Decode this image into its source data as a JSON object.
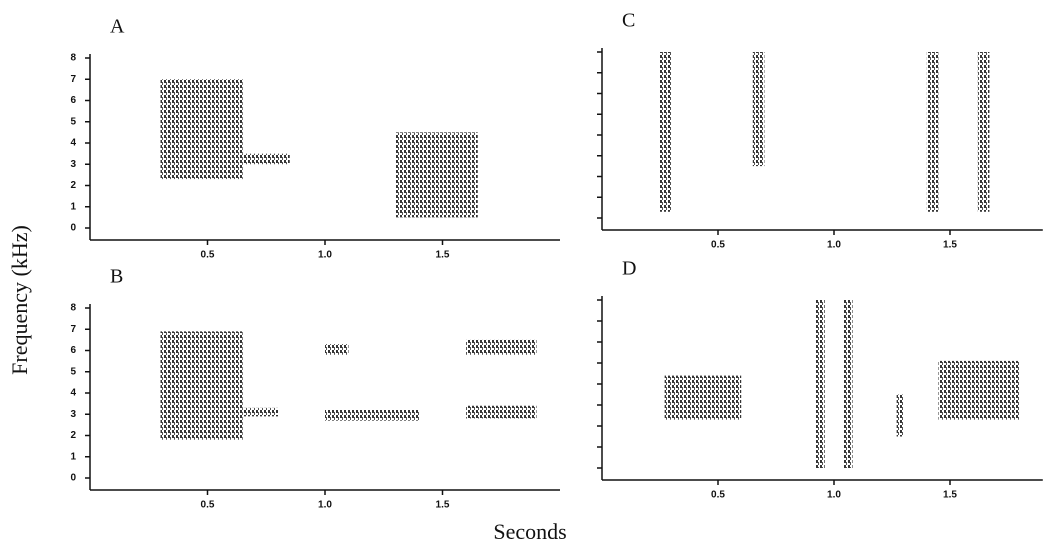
{
  "figure": {
    "ylabel": "Frequency (kHz)",
    "xlabel": "Seconds"
  },
  "chart_data": [
    {
      "type": "spectrogram",
      "label": "A",
      "xlim": [
        0,
        2
      ],
      "ylim": [
        0,
        8
      ],
      "xticks": [
        0.5,
        {
          "value": 1,
          "label": "1.0"
        },
        1.5
      ],
      "yticks": [
        0,
        1,
        2,
        3,
        4,
        5,
        6,
        7,
        8
      ],
      "calls": [
        {
          "t": [
            0.3,
            0.65
          ],
          "f": [
            2.3,
            7.0
          ]
        },
        {
          "t": [
            0.65,
            0.85
          ],
          "f": [
            3.0,
            3.5
          ]
        },
        {
          "t": [
            1.3,
            1.65
          ],
          "f": [
            0.5,
            4.5
          ]
        }
      ]
    },
    {
      "type": "spectrogram",
      "label": "B",
      "xlim": [
        0,
        2
      ],
      "ylim": [
        0,
        8
      ],
      "xticks": [
        0.5,
        {
          "value": 1,
          "label": "1.0"
        },
        1.5
      ],
      "yticks": [
        0,
        1,
        2,
        3,
        4,
        5,
        6,
        7,
        8
      ],
      "calls": [
        {
          "t": [
            0.3,
            0.65
          ],
          "f": [
            1.8,
            6.9
          ]
        },
        {
          "t": [
            0.65,
            0.8
          ],
          "f": [
            2.9,
            3.3
          ]
        },
        {
          "t": [
            1.0,
            1.1
          ],
          "f": [
            5.8,
            6.3
          ]
        },
        {
          "t": [
            1.0,
            1.4
          ],
          "f": [
            2.7,
            3.2
          ]
        },
        {
          "t": [
            1.6,
            1.9
          ],
          "f": [
            5.8,
            6.5
          ]
        },
        {
          "t": [
            1.6,
            1.9
          ],
          "f": [
            2.8,
            3.4
          ]
        }
      ]
    },
    {
      "type": "spectrogram",
      "label": "C",
      "xlim": [
        0,
        1.9
      ],
      "ylim": [
        0,
        8
      ],
      "xticks": [
        0.5,
        {
          "value": 1,
          "label": "1.0"
        },
        1.5
      ],
      "ytick_labels": false,
      "calls": [
        {
          "t": [
            0.25,
            0.3
          ],
          "f": [
            0.3,
            8
          ]
        },
        {
          "t": [
            0.65,
            0.7
          ],
          "f": [
            2.5,
            8
          ]
        },
        {
          "t": [
            1.4,
            1.45
          ],
          "f": [
            0.3,
            8
          ]
        },
        {
          "t": [
            1.62,
            1.67
          ],
          "f": [
            0.3,
            8
          ]
        }
      ]
    },
    {
      "type": "spectrogram",
      "label": "D",
      "xlim": [
        0,
        1.9
      ],
      "ylim": [
        0,
        8
      ],
      "xticks": [
        0.5,
        {
          "value": 1,
          "label": "1.0"
        },
        1.5
      ],
      "ytick_labels": false,
      "calls": [
        {
          "t": [
            0.27,
            0.6
          ],
          "f": [
            2.3,
            4.4
          ]
        },
        {
          "t": [
            0.92,
            0.96
          ],
          "f": [
            0,
            8
          ]
        },
        {
          "t": [
            1.04,
            1.08
          ],
          "f": [
            0,
            8
          ]
        },
        {
          "t": [
            1.27,
            1.3
          ],
          "f": [
            1.5,
            3.5
          ]
        },
        {
          "t": [
            1.45,
            1.8
          ],
          "f": [
            2.3,
            5.1
          ]
        }
      ]
    }
  ]
}
